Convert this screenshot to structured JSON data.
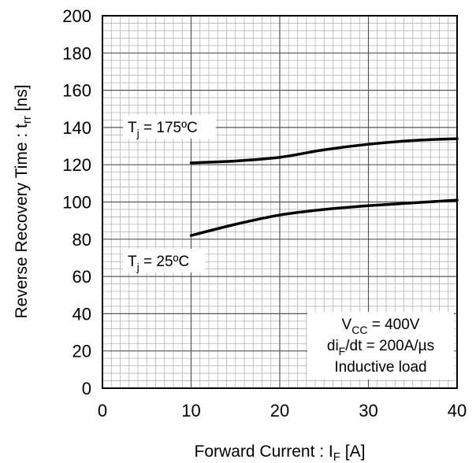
{
  "chart_data": {
    "type": "line",
    "xlabel": "Forward Current : I_F [A]",
    "ylabel": "Reverse Recovery Time : t_rr [ns]",
    "xlim": [
      0,
      40
    ],
    "ylim": [
      0,
      200
    ],
    "x_ticks": [
      "0",
      "10",
      "20",
      "30",
      "40"
    ],
    "y_ticks": [
      "0",
      "20",
      "40",
      "60",
      "80",
      "100",
      "120",
      "140",
      "160",
      "180",
      "200"
    ],
    "grid": true,
    "series": [
      {
        "name": "Tj = 175ºC",
        "x": [
          10,
          15,
          20,
          25,
          30,
          35,
          40
        ],
        "y": [
          121,
          122,
          124,
          128,
          131,
          133,
          134
        ]
      },
      {
        "name": "Tj = 25ºC",
        "x": [
          10,
          15,
          20,
          25,
          30,
          35,
          40
        ],
        "y": [
          82,
          88,
          93,
          96,
          98,
          99.5,
          101
        ]
      }
    ],
    "annotations": {
      "label_175": {
        "main": "T",
        "sub": "j",
        "rest": " = 175ºC"
      },
      "label_25": {
        "main": "T",
        "sub": "j",
        "rest": " = 25ºC"
      },
      "conditions": {
        "line1": {
          "main": "V",
          "sub": "CC",
          "rest": " = 400V"
        },
        "line2": {
          "main": "di",
          "sub": "F",
          "rest": "/dt = 200A/µs"
        },
        "line3": "Inductive load"
      }
    },
    "xlabel_parts": {
      "main": "Forward Current : I",
      "sub": "F",
      "rest": " [A]"
    },
    "ylabel_parts": {
      "main": "Reverse Recovery Time : t",
      "sub": "rr",
      "rest": " [ns]"
    },
    "colors": {
      "line": "#000000",
      "grid_minor": "#b4b4b4",
      "grid_major": "#555555"
    }
  }
}
